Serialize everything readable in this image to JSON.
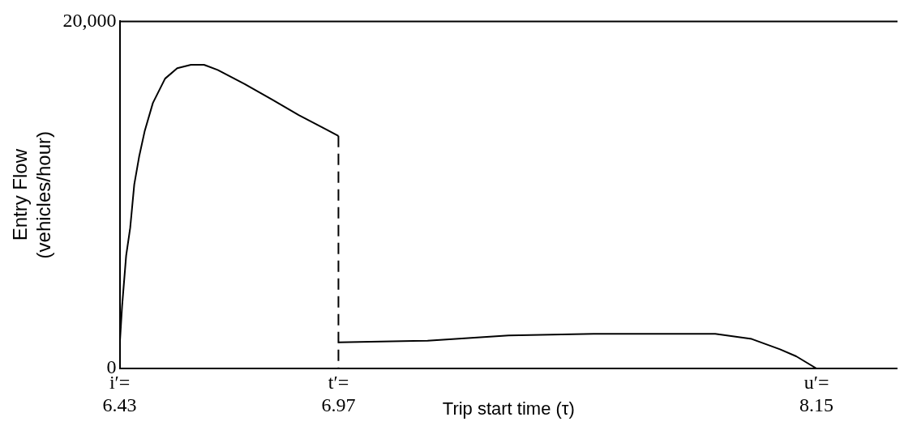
{
  "chart_data": {
    "type": "line",
    "xlabel": "Trip start time (τ)",
    "ylabel": "Entry Flow\n(vehicles/hour)",
    "xlim": [
      6.43,
      8.35
    ],
    "ylim": [
      0,
      20000
    ],
    "xticks": [
      {
        "value": 6.43,
        "label": "i′=\n6.43"
      },
      {
        "value": 6.97,
        "label": "t′=\n6.97"
      },
      {
        "value": 8.15,
        "label": "u′=\n8.15"
      }
    ],
    "yticks": [
      0,
      {
        "value": 20000,
        "label": "20,000"
      }
    ],
    "grid": false,
    "legend": false,
    "series": [
      {
        "color": "#000000",
        "x": [
          6.43,
          6.436,
          6.446,
          6.456,
          6.466,
          6.478,
          6.492,
          6.512,
          6.542,
          6.572,
          6.606,
          6.638,
          6.672,
          6.738,
          6.806,
          6.872,
          6.938,
          6.97
        ],
        "values": [
          1300,
          3600,
          6500,
          8100,
          10600,
          12200,
          13700,
          15300,
          16700,
          17300,
          17500,
          17500,
          17200,
          16400,
          15500,
          14600,
          13800,
          13400
        ]
      },
      {
        "color": "#000000",
        "line_style": "dashed",
        "x": [
          6.97,
          6.97
        ],
        "values": [
          13400,
          0
        ]
      },
      {
        "color": "#000000",
        "x": [
          6.97,
          7.19,
          7.39,
          7.6,
          7.9,
          7.99,
          8.06,
          8.1,
          8.15
        ],
        "values": [
          1500,
          1600,
          1900,
          2000,
          2000,
          1700,
          1100,
          700,
          0
        ]
      }
    ]
  }
}
